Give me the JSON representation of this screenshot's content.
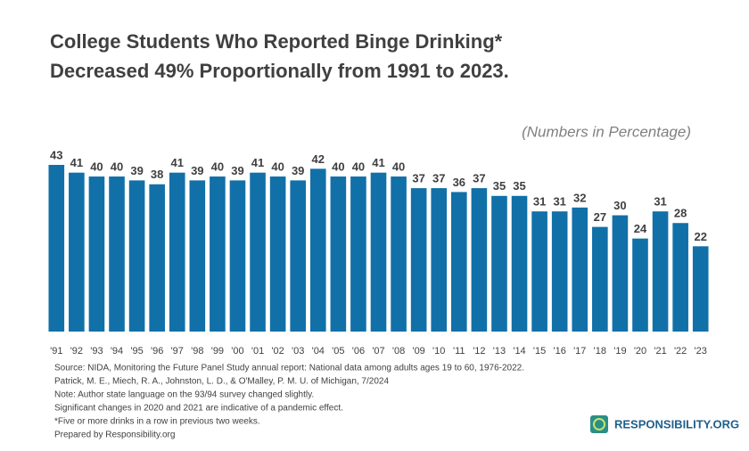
{
  "chart_data": {
    "type": "bar",
    "title": [
      "College Students Who Reported Binge Drinking*",
      "Decreased 49% Proportionally from 1991 to 2023."
    ],
    "subtitle": "(Numbers in Percentage)",
    "categories": [
      "'91",
      "'92",
      "'93",
      "'94",
      "'95",
      "'96",
      "'97",
      "'98",
      "'99",
      "'00",
      "'01",
      "'02",
      "'03",
      "'04",
      "'05",
      "'06",
      "'07",
      "'08",
      "'09",
      "'10",
      "'11",
      "'12",
      "'13",
      "'14",
      "'15",
      "'16",
      "'17",
      "'18",
      "'19",
      "'20",
      "'21",
      "'22",
      "'23"
    ],
    "values": [
      43,
      41,
      40,
      40,
      39,
      38,
      41,
      39,
      40,
      39,
      41,
      40,
      39,
      42,
      40,
      40,
      41,
      40,
      37,
      37,
      36,
      37,
      35,
      35,
      31,
      31,
      32,
      27,
      30,
      24,
      31,
      28,
      22
    ],
    "color": "#1270a8",
    "notes": [
      "Source: NIDA, Monitoring the Future Panel Study annual report: National data among adults ages 19 to 60, 1976-2022.",
      "Patrick, M. E., Miech, R. A., Johnston, L. D., & O'Malley, P. M. U. of Michigan, 7/2024",
      "Note: Author state language on the 93/94 survey changed slightly.",
      "Significant changes in 2020 and 2021 are indicative of a pandemic effect.",
      "*Five or more drinks in a row in previous two weeks.",
      "Prepared by Responsibility.org"
    ],
    "logo": "RESPONSIBILITY.ORG"
  }
}
